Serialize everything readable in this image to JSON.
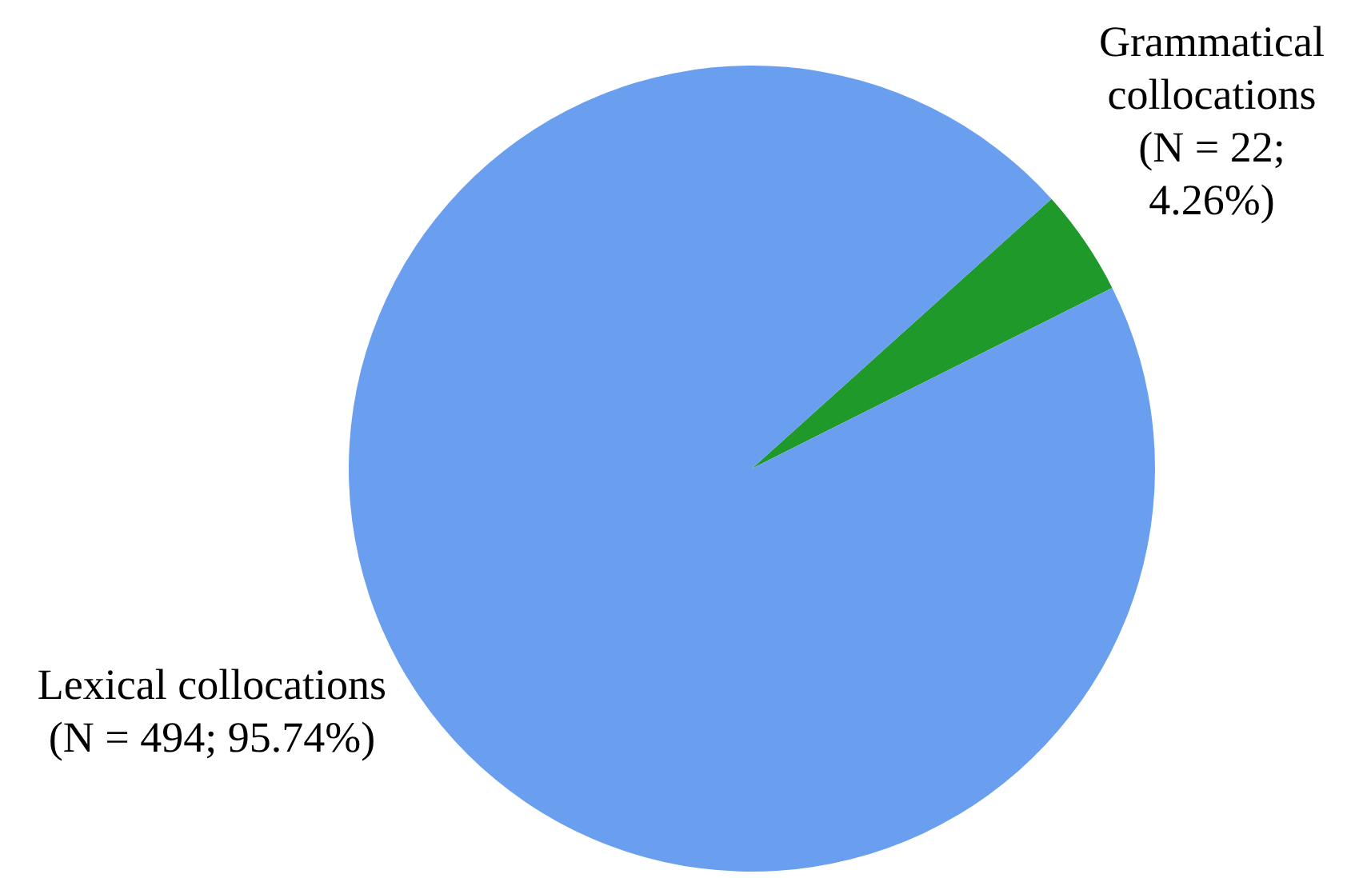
{
  "chart_data": {
    "type": "pie",
    "categories": [
      "Grammatical collocations",
      "Lexical collocations"
    ],
    "values": [
      22,
      494
    ],
    "value_labels": [
      "(N = 22; 4.26%)",
      "(N = 494; 95.74%)"
    ],
    "colors": [
      "#1f9a2a",
      "#6a9ff0"
    ],
    "legend": false
  }
}
